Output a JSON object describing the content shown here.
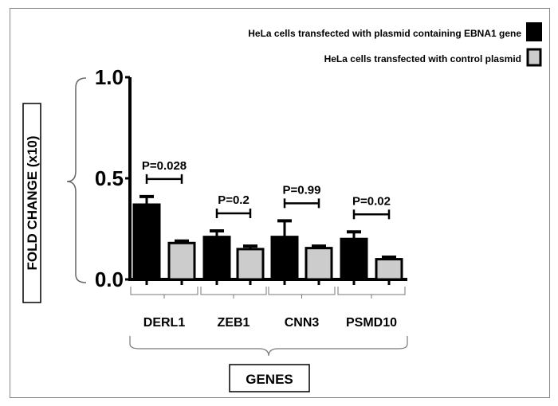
{
  "chart_data": {
    "type": "bar",
    "title": "",
    "xlabel": "GENES",
    "ylabel": "FOLD CHANGE (x10)",
    "ylim": [
      0,
      1.0
    ],
    "yticks": [
      "0.0",
      "0.5",
      "1.0"
    ],
    "ytick_values": [
      0,
      0.5,
      1.0
    ],
    "categories": [
      "DERL1",
      "ZEB1",
      "CNN3",
      "PSMD10"
    ],
    "series": [
      {
        "name": "HeLa cells transfected with plasmid containing EBNA1 gene",
        "color": "#000000",
        "values": [
          0.37,
          0.21,
          0.21,
          0.2
        ],
        "error_upper": [
          0.41,
          0.24,
          0.29,
          0.235
        ]
      },
      {
        "name": "HeLa cells transfected with control plasmid",
        "color": "#cccccc",
        "values": [
          0.18,
          0.15,
          0.155,
          0.1
        ],
        "error_upper": [
          0.19,
          0.165,
          0.165,
          0.11
        ]
      }
    ],
    "annotations": [
      "P=0.028",
      "P=0.2",
      "P=0.99",
      "P=0.02"
    ],
    "legend_position": "top-right",
    "grid": false
  }
}
